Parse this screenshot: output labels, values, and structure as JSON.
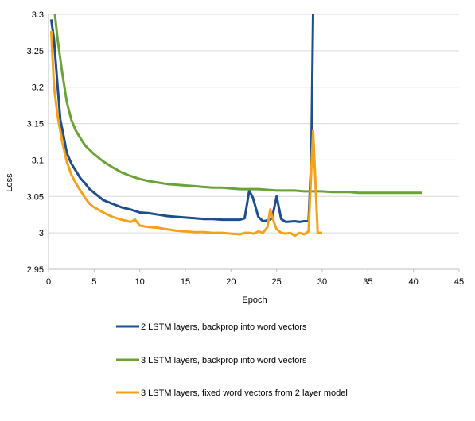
{
  "chart_data": {
    "type": "line",
    "title": "",
    "xlabel": "Epoch",
    "ylabel": "Loss",
    "xlim": [
      0,
      45
    ],
    "ylim": [
      2.95,
      3.3
    ],
    "x_ticks": [
      0,
      5,
      10,
      15,
      20,
      25,
      30,
      35,
      40,
      45
    ],
    "y_ticks": [
      2.95,
      3,
      3.05,
      3.1,
      3.15,
      3.2,
      3.25,
      3.3
    ],
    "grid": "horizontal",
    "legend_position": "bottom",
    "series": [
      {
        "name": "2 LSTM layers, backprop into word vectors",
        "color": "#1f4e8c",
        "points": [
          [
            0.3,
            3.293
          ],
          [
            0.6,
            3.265
          ],
          [
            1,
            3.2
          ],
          [
            1.3,
            3.155
          ],
          [
            1.7,
            3.13
          ],
          [
            2,
            3.11
          ],
          [
            2.5,
            3.095
          ],
          [
            3,
            3.085
          ],
          [
            3.5,
            3.075
          ],
          [
            4,
            3.068
          ],
          [
            4.5,
            3.06
          ],
          [
            5,
            3.055
          ],
          [
            5.5,
            3.05
          ],
          [
            6,
            3.045
          ],
          [
            7,
            3.04
          ],
          [
            8,
            3.035
          ],
          [
            9,
            3.032
          ],
          [
            10,
            3.028
          ],
          [
            11,
            3.027
          ],
          [
            12,
            3.025
          ],
          [
            13,
            3.023
          ],
          [
            14,
            3.022
          ],
          [
            15,
            3.021
          ],
          [
            16,
            3.02
          ],
          [
            17,
            3.019
          ],
          [
            18,
            3.019
          ],
          [
            19,
            3.018
          ],
          [
            20,
            3.018
          ],
          [
            21,
            3.018
          ],
          [
            21.5,
            3.02
          ],
          [
            22,
            3.058
          ],
          [
            22.4,
            3.048
          ],
          [
            23,
            3.022
          ],
          [
            23.5,
            3.016
          ],
          [
            24,
            3.017
          ],
          [
            24.5,
            3.02
          ],
          [
            25,
            3.05
          ],
          [
            25.5,
            3.019
          ],
          [
            26,
            3.015
          ],
          [
            27,
            3.016
          ],
          [
            27.5,
            3.015
          ],
          [
            28,
            3.016
          ],
          [
            28.5,
            3.016
          ],
          [
            28.8,
            3.1
          ],
          [
            29,
            3.3
          ]
        ]
      },
      {
        "name": "3 LSTM layers, backprop into word vectors",
        "color": "#6aa336",
        "points": [
          [
            0.7,
            3.3
          ],
          [
            1,
            3.265
          ],
          [
            1.5,
            3.22
          ],
          [
            2,
            3.18
          ],
          [
            2.5,
            3.155
          ],
          [
            3,
            3.14
          ],
          [
            3.5,
            3.13
          ],
          [
            4,
            3.12
          ],
          [
            5,
            3.108
          ],
          [
            6,
            3.098
          ],
          [
            7,
            3.09
          ],
          [
            8,
            3.083
          ],
          [
            9,
            3.078
          ],
          [
            10,
            3.074
          ],
          [
            11,
            3.071
          ],
          [
            12,
            3.069
          ],
          [
            13,
            3.067
          ],
          [
            14,
            3.066
          ],
          [
            15,
            3.065
          ],
          [
            16,
            3.064
          ],
          [
            17,
            3.063
          ],
          [
            18,
            3.062
          ],
          [
            19,
            3.062
          ],
          [
            20,
            3.061
          ],
          [
            21,
            3.06
          ],
          [
            22,
            3.06
          ],
          [
            23,
            3.06
          ],
          [
            24,
            3.059
          ],
          [
            25,
            3.058
          ],
          [
            26,
            3.058
          ],
          [
            27,
            3.058
          ],
          [
            28,
            3.057
          ],
          [
            29,
            3.057
          ],
          [
            30,
            3.057
          ],
          [
            31,
            3.056
          ],
          [
            32,
            3.056
          ],
          [
            33,
            3.056
          ],
          [
            34,
            3.055
          ],
          [
            35,
            3.055
          ],
          [
            36,
            3.055
          ],
          [
            37,
            3.055
          ],
          [
            38,
            3.055
          ],
          [
            39,
            3.055
          ],
          [
            40,
            3.055
          ],
          [
            41,
            3.055
          ]
        ]
      },
      {
        "name": "3 LSTM layers, fixed word vectors from 2 layer model",
        "color": "#f2a31b",
        "points": [
          [
            0.3,
            3.277
          ],
          [
            0.6,
            3.2
          ],
          [
            1,
            3.16
          ],
          [
            1.5,
            3.125
          ],
          [
            2,
            3.098
          ],
          [
            2.5,
            3.08
          ],
          [
            3,
            3.068
          ],
          [
            3.5,
            3.058
          ],
          [
            4,
            3.048
          ],
          [
            4.5,
            3.04
          ],
          [
            5,
            3.035
          ],
          [
            6,
            3.028
          ],
          [
            7,
            3.022
          ],
          [
            8,
            3.018
          ],
          [
            9,
            3.015
          ],
          [
            9.5,
            3.018
          ],
          [
            10,
            3.01
          ],
          [
            11,
            3.008
          ],
          [
            12,
            3.007
          ],
          [
            13,
            3.005
          ],
          [
            14,
            3.003
          ],
          [
            15,
            3.002
          ],
          [
            16,
            3.001
          ],
          [
            17,
            3.001
          ],
          [
            18,
            3
          ],
          [
            19,
            3
          ],
          [
            20,
            2.999
          ],
          [
            21,
            2.998
          ],
          [
            21.5,
            3
          ],
          [
            22,
            3
          ],
          [
            22.5,
            2.999
          ],
          [
            23,
            3.002
          ],
          [
            23.5,
            3.0
          ],
          [
            24,
            3.008
          ],
          [
            24.3,
            3.032
          ],
          [
            24.7,
            3.015
          ],
          [
            25,
            3.005
          ],
          [
            25.5,
            3.0
          ],
          [
            26,
            2.999
          ],
          [
            26.5,
            3.0
          ],
          [
            27,
            2.996
          ],
          [
            27.5,
            3.0
          ],
          [
            28,
            2.998
          ],
          [
            28.5,
            3.002
          ],
          [
            29,
            3.14
          ],
          [
            29.5,
            3.0
          ],
          [
            30,
            3.0
          ]
        ]
      }
    ]
  }
}
